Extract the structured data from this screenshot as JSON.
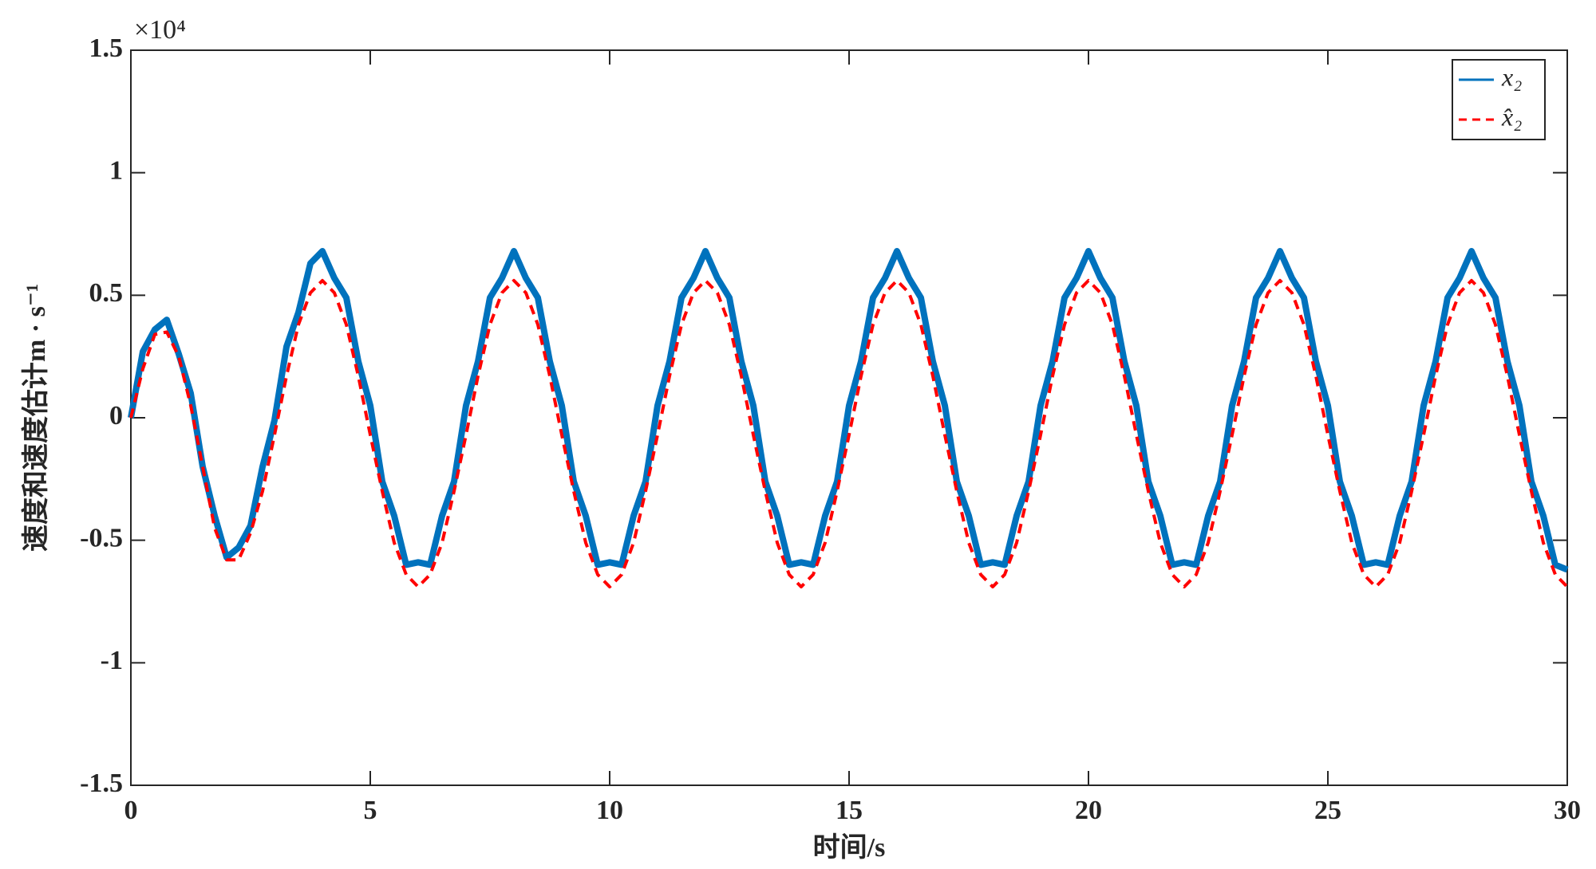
{
  "chart_data": {
    "type": "line",
    "y_multiplier": "×10⁴",
    "xlabel": "时间/s",
    "ylabel": "速度和速度估计m · s⁻¹",
    "xlim": [
      0,
      30
    ],
    "xticks": [
      0,
      5,
      10,
      15,
      20,
      25,
      30
    ],
    "ylim": [
      -1.5,
      1.5
    ],
    "yticks": [
      -1.5,
      -1,
      -0.5,
      0,
      0.5,
      1,
      1.5
    ],
    "grid": false,
    "legend": "upper right",
    "x": [
      0,
      0.25,
      0.5,
      0.75,
      1,
      1.25,
      1.5,
      1.75,
      2,
      2.25,
      2.5,
      2.75,
      3,
      3.25,
      3.5,
      3.75,
      4,
      4.25,
      4.5,
      4.75,
      5,
      5.25,
      5.5,
      5.75,
      6,
      6.25,
      6.5,
      6.75,
      7,
      7.25,
      7.5,
      7.75,
      8,
      8.25,
      8.5,
      8.75,
      9,
      9.25,
      9.5,
      9.75,
      10,
      10.25,
      10.5,
      10.75,
      11,
      11.25,
      11.5,
      11.75,
      12,
      12.25,
      12.5,
      12.75,
      13,
      13.25,
      13.5,
      13.75,
      14,
      14.25,
      14.5,
      14.75,
      15,
      15.25,
      15.5,
      15.75,
      16,
      16.25,
      16.5,
      16.75,
      17,
      17.25,
      17.5,
      17.75,
      18,
      18.25,
      18.5,
      18.75,
      19,
      19.25,
      19.5,
      19.75,
      20,
      20.25,
      20.5,
      20.75,
      21,
      21.25,
      21.5,
      21.75,
      22,
      22.25,
      22.5,
      22.75,
      23,
      23.25,
      23.5,
      23.75,
      24,
      24.25,
      24.5,
      24.75,
      25,
      25.25,
      25.5,
      25.75,
      26,
      26.25,
      26.5,
      26.75,
      27,
      27.25,
      27.5,
      27.75,
      28,
      28.25,
      28.5,
      28.75,
      29,
      29.25,
      29.5,
      29.75,
      30
    ],
    "series": [
      {
        "name": "x₂",
        "color": "#0072bd",
        "style": "solid",
        "values": [
          0,
          0.27,
          0.36,
          0.4,
          0.26,
          0.1,
          -0.2,
          -0.4,
          -0.57,
          -0.53,
          -0.44,
          -0.2,
          -0.01,
          0.29,
          0.43,
          0.63,
          0.68,
          0.57,
          0.49,
          0.23,
          0.05,
          -0.26,
          -0.4,
          -0.6,
          -0.59,
          -0.6,
          -0.4,
          -0.26,
          0.05,
          0.23,
          0.49,
          0.57,
          0.68,
          0.57,
          0.49,
          0.23,
          0.05,
          -0.26,
          -0.4,
          -0.6,
          -0.59,
          -0.6,
          -0.4,
          -0.26,
          0.05,
          0.23,
          0.49,
          0.57,
          0.68,
          0.57,
          0.49,
          0.23,
          0.05,
          -0.26,
          -0.4,
          -0.6,
          -0.59,
          -0.6,
          -0.4,
          -0.26,
          0.05,
          0.23,
          0.49,
          0.57,
          0.68,
          0.57,
          0.49,
          0.23,
          0.05,
          -0.26,
          -0.4,
          -0.6,
          -0.59,
          -0.6,
          -0.4,
          -0.26,
          0.05,
          0.23,
          0.49,
          0.57,
          0.68,
          0.57,
          0.49,
          0.23,
          0.05,
          -0.26,
          -0.4,
          -0.6,
          -0.59,
          -0.6,
          -0.4,
          -0.26,
          0.05,
          0.23,
          0.49,
          0.57,
          0.68,
          0.57,
          0.49,
          0.23,
          0.05,
          -0.26,
          -0.4,
          -0.6,
          -0.59,
          -0.6,
          -0.4,
          -0.26,
          0.05,
          0.23,
          0.49,
          0.57,
          0.68,
          0.57,
          0.49,
          0.23,
          0.05,
          -0.26,
          -0.4,
          -0.6,
          -0.62
        ]
      },
      {
        "name": "x̂₂",
        "color": "#ff0000",
        "style": "dashed",
        "values": [
          0,
          0.2,
          0.34,
          0.35,
          0.25,
          0.05,
          -0.2,
          -0.45,
          -0.58,
          -0.58,
          -0.47,
          -0.3,
          -0.07,
          0.17,
          0.38,
          0.51,
          0.56,
          0.51,
          0.38,
          0.17,
          -0.07,
          -0.3,
          -0.51,
          -0.64,
          -0.69,
          -0.64,
          -0.51,
          -0.3,
          -0.07,
          0.17,
          0.38,
          0.51,
          0.56,
          0.51,
          0.38,
          0.17,
          -0.07,
          -0.3,
          -0.51,
          -0.64,
          -0.69,
          -0.64,
          -0.51,
          -0.3,
          -0.07,
          0.17,
          0.38,
          0.51,
          0.56,
          0.51,
          0.38,
          0.17,
          -0.07,
          -0.3,
          -0.51,
          -0.64,
          -0.69,
          -0.64,
          -0.51,
          -0.3,
          -0.07,
          0.17,
          0.38,
          0.51,
          0.56,
          0.51,
          0.38,
          0.17,
          -0.07,
          -0.3,
          -0.51,
          -0.64,
          -0.69,
          -0.64,
          -0.51,
          -0.3,
          -0.07,
          0.17,
          0.38,
          0.51,
          0.56,
          0.51,
          0.38,
          0.17,
          -0.07,
          -0.3,
          -0.51,
          -0.64,
          -0.69,
          -0.64,
          -0.51,
          -0.3,
          -0.07,
          0.17,
          0.38,
          0.51,
          0.56,
          0.51,
          0.38,
          0.17,
          -0.07,
          -0.3,
          -0.51,
          -0.64,
          -0.69,
          -0.64,
          -0.51,
          -0.3,
          -0.07,
          0.17,
          0.38,
          0.51,
          0.56,
          0.51,
          0.38,
          0.17,
          -0.07,
          -0.3,
          -0.51,
          -0.64,
          -0.69
        ]
      }
    ]
  }
}
